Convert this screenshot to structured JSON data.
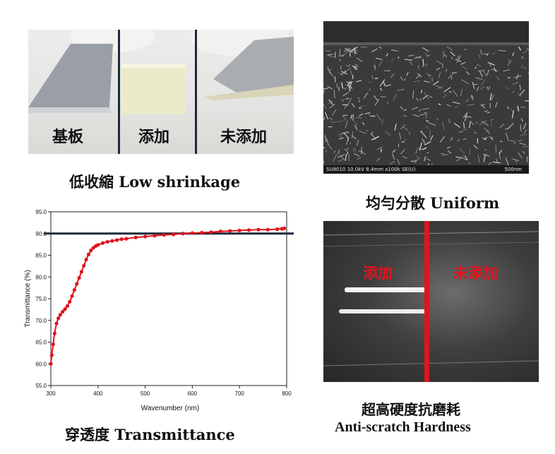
{
  "shrinkage": {
    "labels": [
      "基板",
      "添加",
      "未添加"
    ],
    "caption": "低收縮 Low shrinkage"
  },
  "sem": {
    "info_left": "SU8010 10.0kV 8.4mm x100k SE(U)",
    "info_right": "500nm",
    "caption": "均勻分散 Uniform"
  },
  "scratch": {
    "label_left": "添加",
    "label_right": "未添加",
    "caption_line1": "超高硬度抗磨耗",
    "caption_line2": "Anti-scratch Hardness"
  },
  "chart_caption": "穿透度 Transmittance",
  "chart_data": {
    "type": "scatter",
    "title": "",
    "xlabel": "Wavenumber (nm)",
    "ylabel": "Transmittance (%)",
    "xlim": [
      300,
      800
    ],
    "ylim": [
      55,
      95
    ],
    "xticks": [
      300,
      400,
      500,
      600,
      700,
      800
    ],
    "yticks": [
      55,
      60,
      65,
      70,
      75,
      80,
      85,
      90,
      95
    ],
    "reference_line": 90,
    "color": "#e0141c",
    "reference_color": "#1d2a3d",
    "x": [
      300,
      302,
      305,
      308,
      312,
      316,
      320,
      325,
      330,
      335,
      340,
      345,
      350,
      355,
      360,
      365,
      370,
      375,
      380,
      385,
      390,
      395,
      400,
      410,
      420,
      430,
      440,
      450,
      460,
      480,
      500,
      520,
      540,
      560,
      580,
      600,
      620,
      640,
      660,
      680,
      700,
      720,
      740,
      760,
      780,
      790,
      795
    ],
    "y": [
      60.0,
      62.0,
      64.5,
      67.0,
      69.3,
      70.5,
      71.3,
      72.0,
      72.6,
      73.3,
      74.3,
      75.6,
      77.0,
      78.4,
      79.8,
      81.2,
      82.6,
      84.0,
      85.2,
      86.1,
      86.7,
      87.1,
      87.4,
      87.8,
      88.1,
      88.3,
      88.5,
      88.7,
      88.8,
      89.1,
      89.3,
      89.5,
      89.7,
      89.8,
      90.0,
      90.1,
      90.2,
      90.3,
      90.5,
      90.6,
      90.7,
      90.8,
      90.9,
      90.9,
      91.0,
      91.1,
      91.2
    ]
  }
}
